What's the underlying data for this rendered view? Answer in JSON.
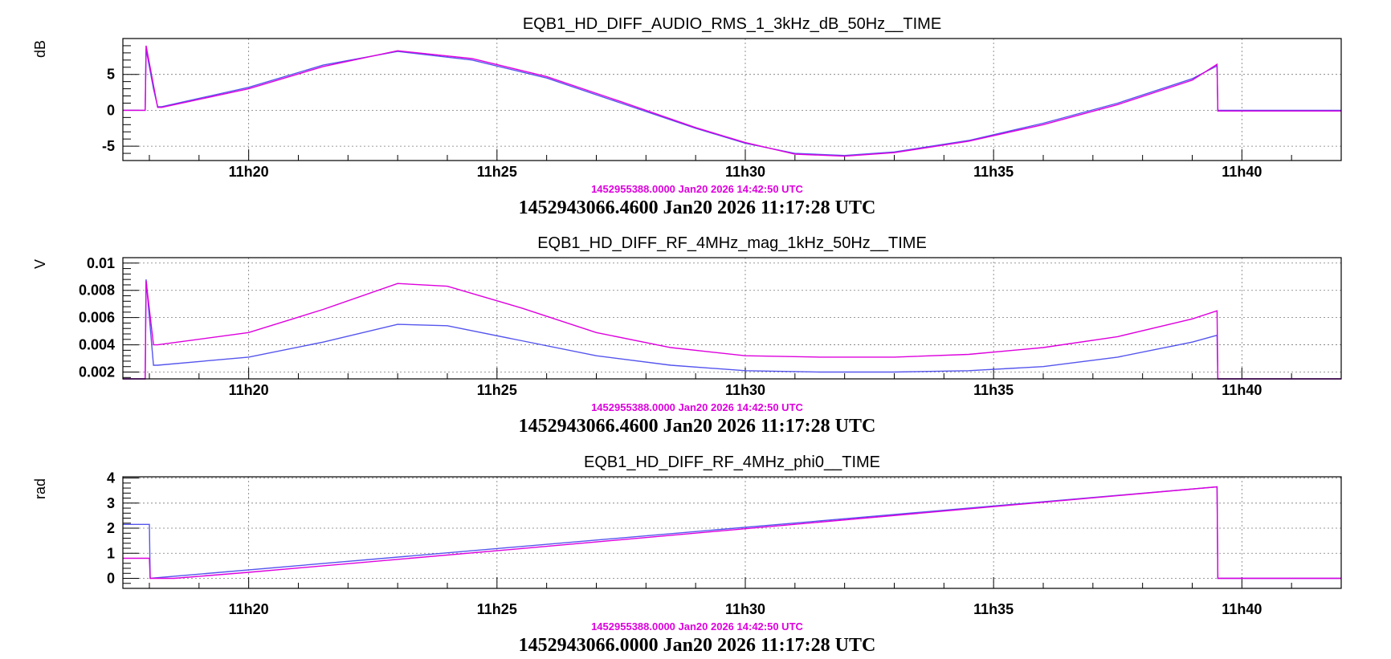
{
  "colors": {
    "series_a": "#5555ee",
    "series_b": "#dd00dd",
    "ref_small": "#dd00dd"
  },
  "chart_data": [
    {
      "type": "line",
      "title": "EQB1_HD_DIFF_AUDIO_RMS_1_3kHz_dB_50Hz__TIME",
      "ylabel": "dB",
      "xlim": [
        "11:17:28",
        "11:42:00"
      ],
      "ylim": [
        -7,
        10
      ],
      "x_ticks": [
        "11h20",
        "11h25",
        "11h30",
        "11h35",
        "11h40"
      ],
      "y_ticks": [
        "-5",
        "0",
        "5"
      ],
      "y_tick_values": [
        -5,
        0,
        5
      ],
      "ref_small": "1452955388.0000 Jan20 2026 14:42:50 UTC",
      "ref_big": "1452943066.4600 Jan20 2026 11:17:28 UTC",
      "grid": true,
      "series": [
        {
          "color": "#5555ee",
          "x": [
            "11:17:28",
            "11:17:55",
            "11:17:56",
            "11:18:05",
            "11:18:10",
            "11:18:15",
            "11:20:00",
            "11:21:30",
            "11:23:00",
            "11:24:30",
            "11:26:00",
            "11:27:30",
            "11:29:00",
            "11:30:00",
            "11:31:00",
            "11:32:00",
            "11:33:00",
            "11:34:30",
            "11:36:00",
            "11:37:30",
            "11:39:00",
            "11:39:30",
            "11:39:31",
            "11:42:00"
          ],
          "y": [
            0,
            0,
            8.5,
            3,
            0.5,
            0.5,
            3.2,
            6.3,
            8.2,
            7,
            4.5,
            1,
            -2.5,
            -4.6,
            -6,
            -6.3,
            -5.8,
            -4.2,
            -1.8,
            1,
            4.4,
            6.2,
            0,
            0
          ]
        },
        {
          "color": "#dd00dd",
          "x": [
            "11:17:28",
            "11:17:55",
            "11:17:56",
            "11:18:05",
            "11:18:10",
            "11:18:15",
            "11:20:00",
            "11:21:30",
            "11:23:00",
            "11:24:30",
            "11:26:00",
            "11:27:30",
            "11:29:00",
            "11:30:00",
            "11:31:00",
            "11:32:00",
            "11:33:00",
            "11:34:30",
            "11:36:00",
            "11:37:30",
            "11:39:00",
            "11:39:30",
            "11:39:31",
            "11:42:00"
          ],
          "y": [
            0,
            0,
            9,
            3.5,
            0.4,
            0.4,
            3,
            6.1,
            8.3,
            7.2,
            4.7,
            1.2,
            -2.4,
            -4.5,
            -6.1,
            -6.4,
            -5.9,
            -4.3,
            -2,
            0.8,
            4.2,
            6.4,
            -0.1,
            -0.1
          ]
        }
      ]
    },
    {
      "type": "line",
      "title": "EQB1_HD_DIFF_RF_4MHz_mag_1kHz_50Hz__TIME",
      "ylabel": "V",
      "xlim": [
        "11:17:28",
        "11:42:00"
      ],
      "ylim": [
        0.0015,
        0.0104
      ],
      "x_ticks": [
        "11h20",
        "11h25",
        "11h30",
        "11h35",
        "11h40"
      ],
      "y_ticks": [
        "0.002",
        "0.004",
        "0.006",
        "0.008",
        "0.01"
      ],
      "y_tick_values": [
        0.002,
        0.004,
        0.006,
        0.008,
        0.01
      ],
      "ref_small": "1452955388.0000 Jan20 2026 14:42:50 UTC",
      "ref_big": "1452943066.4600 Jan20 2026 11:17:28 UTC",
      "grid": true,
      "series": [
        {
          "color": "#5555ee",
          "x": [
            "11:17:28",
            "11:17:55",
            "11:17:56",
            "11:18:05",
            "11:18:10",
            "11:20:00",
            "11:21:30",
            "11:23:00",
            "11:24:00",
            "11:25:30",
            "11:27:00",
            "11:28:30",
            "11:30:00",
            "11:31:30",
            "11:33:00",
            "11:34:30",
            "11:36:00",
            "11:37:30",
            "11:39:00",
            "11:39:30",
            "11:39:31",
            "11:42:00"
          ],
          "y": [
            0.0015,
            0.0015,
            0.0088,
            0.0025,
            0.0025,
            0.0031,
            0.0042,
            0.0055,
            0.0054,
            0.0043,
            0.0032,
            0.0025,
            0.0021,
            0.002,
            0.002,
            0.0021,
            0.0024,
            0.0031,
            0.0042,
            0.0047,
            0.0015,
            0.0015
          ]
        },
        {
          "color": "#dd00dd",
          "x": [
            "11:17:28",
            "11:17:55",
            "11:17:56",
            "11:18:05",
            "11:18:10",
            "11:20:00",
            "11:21:30",
            "11:23:00",
            "11:24:00",
            "11:25:30",
            "11:27:00",
            "11:28:30",
            "11:30:00",
            "11:31:30",
            "11:33:00",
            "11:34:30",
            "11:36:00",
            "11:37:30",
            "11:39:00",
            "11:39:30",
            "11:39:31",
            "11:42:00"
          ],
          "y": [
            0.0015,
            0.0015,
            0.0087,
            0.004,
            0.004,
            0.0049,
            0.0066,
            0.0085,
            0.0083,
            0.0067,
            0.0049,
            0.0038,
            0.0032,
            0.0031,
            0.0031,
            0.0033,
            0.0038,
            0.0046,
            0.0059,
            0.0065,
            0.0015,
            0.0015
          ]
        }
      ]
    },
    {
      "type": "line",
      "title": "EQB1_HD_DIFF_RF_4MHz_phi0__TIME",
      "ylabel": "rad",
      "xlim": [
        "11:17:28",
        "11:42:00"
      ],
      "ylim": [
        -0.4,
        4.05
      ],
      "x_ticks": [
        "11h20",
        "11h25",
        "11h30",
        "11h35",
        "11h40"
      ],
      "y_ticks": [
        "0",
        "1",
        "2",
        "3",
        "4"
      ],
      "y_tick_values": [
        0,
        1,
        2,
        3,
        4
      ],
      "ref_small": "1452955388.0000 Jan20 2026 14:42:50 UTC",
      "ref_big": "1452943066.0000 Jan20 2026 11:17:28 UTC",
      "grid": true,
      "series": [
        {
          "color": "#5555ee",
          "x": [
            "11:17:28",
            "11:18:00",
            "11:18:01",
            "11:39:30",
            "11:39:31",
            "11:42:00"
          ],
          "y": [
            2.15,
            2.15,
            0,
            3.65,
            0,
            0
          ]
        },
        {
          "color": "#dd00dd",
          "x": [
            "11:17:28",
            "11:18:00",
            "11:18:01",
            "11:18:30",
            "11:20:00",
            "11:25:00",
            "11:30:00",
            "11:35:00",
            "11:39:30",
            "11:39:31",
            "11:42:00"
          ],
          "y": [
            0.8,
            0.8,
            0,
            0,
            0.24,
            1.1,
            1.98,
            2.86,
            3.65,
            0,
            0
          ]
        }
      ]
    }
  ]
}
